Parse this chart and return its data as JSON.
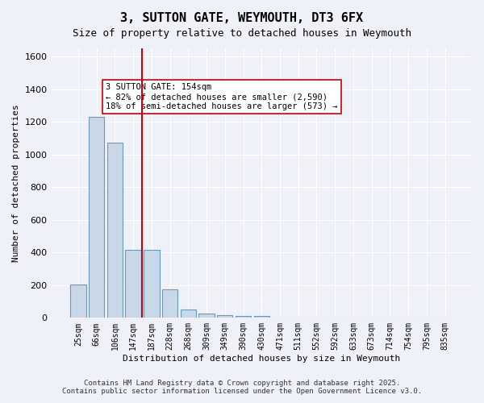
{
  "title": "3, SUTTON GATE, WEYMOUTH, DT3 6FX",
  "subtitle": "Size of property relative to detached houses in Weymouth",
  "xlabel": "Distribution of detached houses by size in Weymouth",
  "ylabel": "Number of detached properties",
  "categories": [
    "25sqm",
    "66sqm",
    "106sqm",
    "147sqm",
    "187sqm",
    "228sqm",
    "268sqm",
    "309sqm",
    "349sqm",
    "390sqm",
    "430sqm",
    "471sqm",
    "511sqm",
    "552sqm",
    "592sqm",
    "633sqm",
    "673sqm",
    "714sqm",
    "754sqm",
    "795sqm",
    "835sqm"
  ],
  "values": [
    205,
    1230,
    1075,
    415,
    415,
    175,
    50,
    25,
    15,
    10,
    10,
    0,
    0,
    0,
    0,
    0,
    0,
    0,
    0,
    0,
    0
  ],
  "bar_color": "#c8d8e8",
  "bar_edge_color": "#6699bb",
  "vline_x_index": 3.5,
  "vline_color": "#cc0000",
  "annotation_title": "3 SUTTON GATE: 154sqm",
  "annotation_line1": "← 82% of detached houses are smaller (2,590)",
  "annotation_line2": "18% of semi-detached houses are larger (573) →",
  "annotation_box_color": "#ffffff",
  "annotation_box_edge": "#cc0000",
  "ylim": [
    0,
    1650
  ],
  "yticks": [
    0,
    200,
    400,
    600,
    800,
    1000,
    1200,
    1400,
    1600
  ],
  "bg_color": "#eef2f8",
  "grid_color": "#ffffff",
  "footer_line1": "Contains HM Land Registry data © Crown copyright and database right 2025.",
  "footer_line2": "Contains public sector information licensed under the Open Government Licence v3.0."
}
